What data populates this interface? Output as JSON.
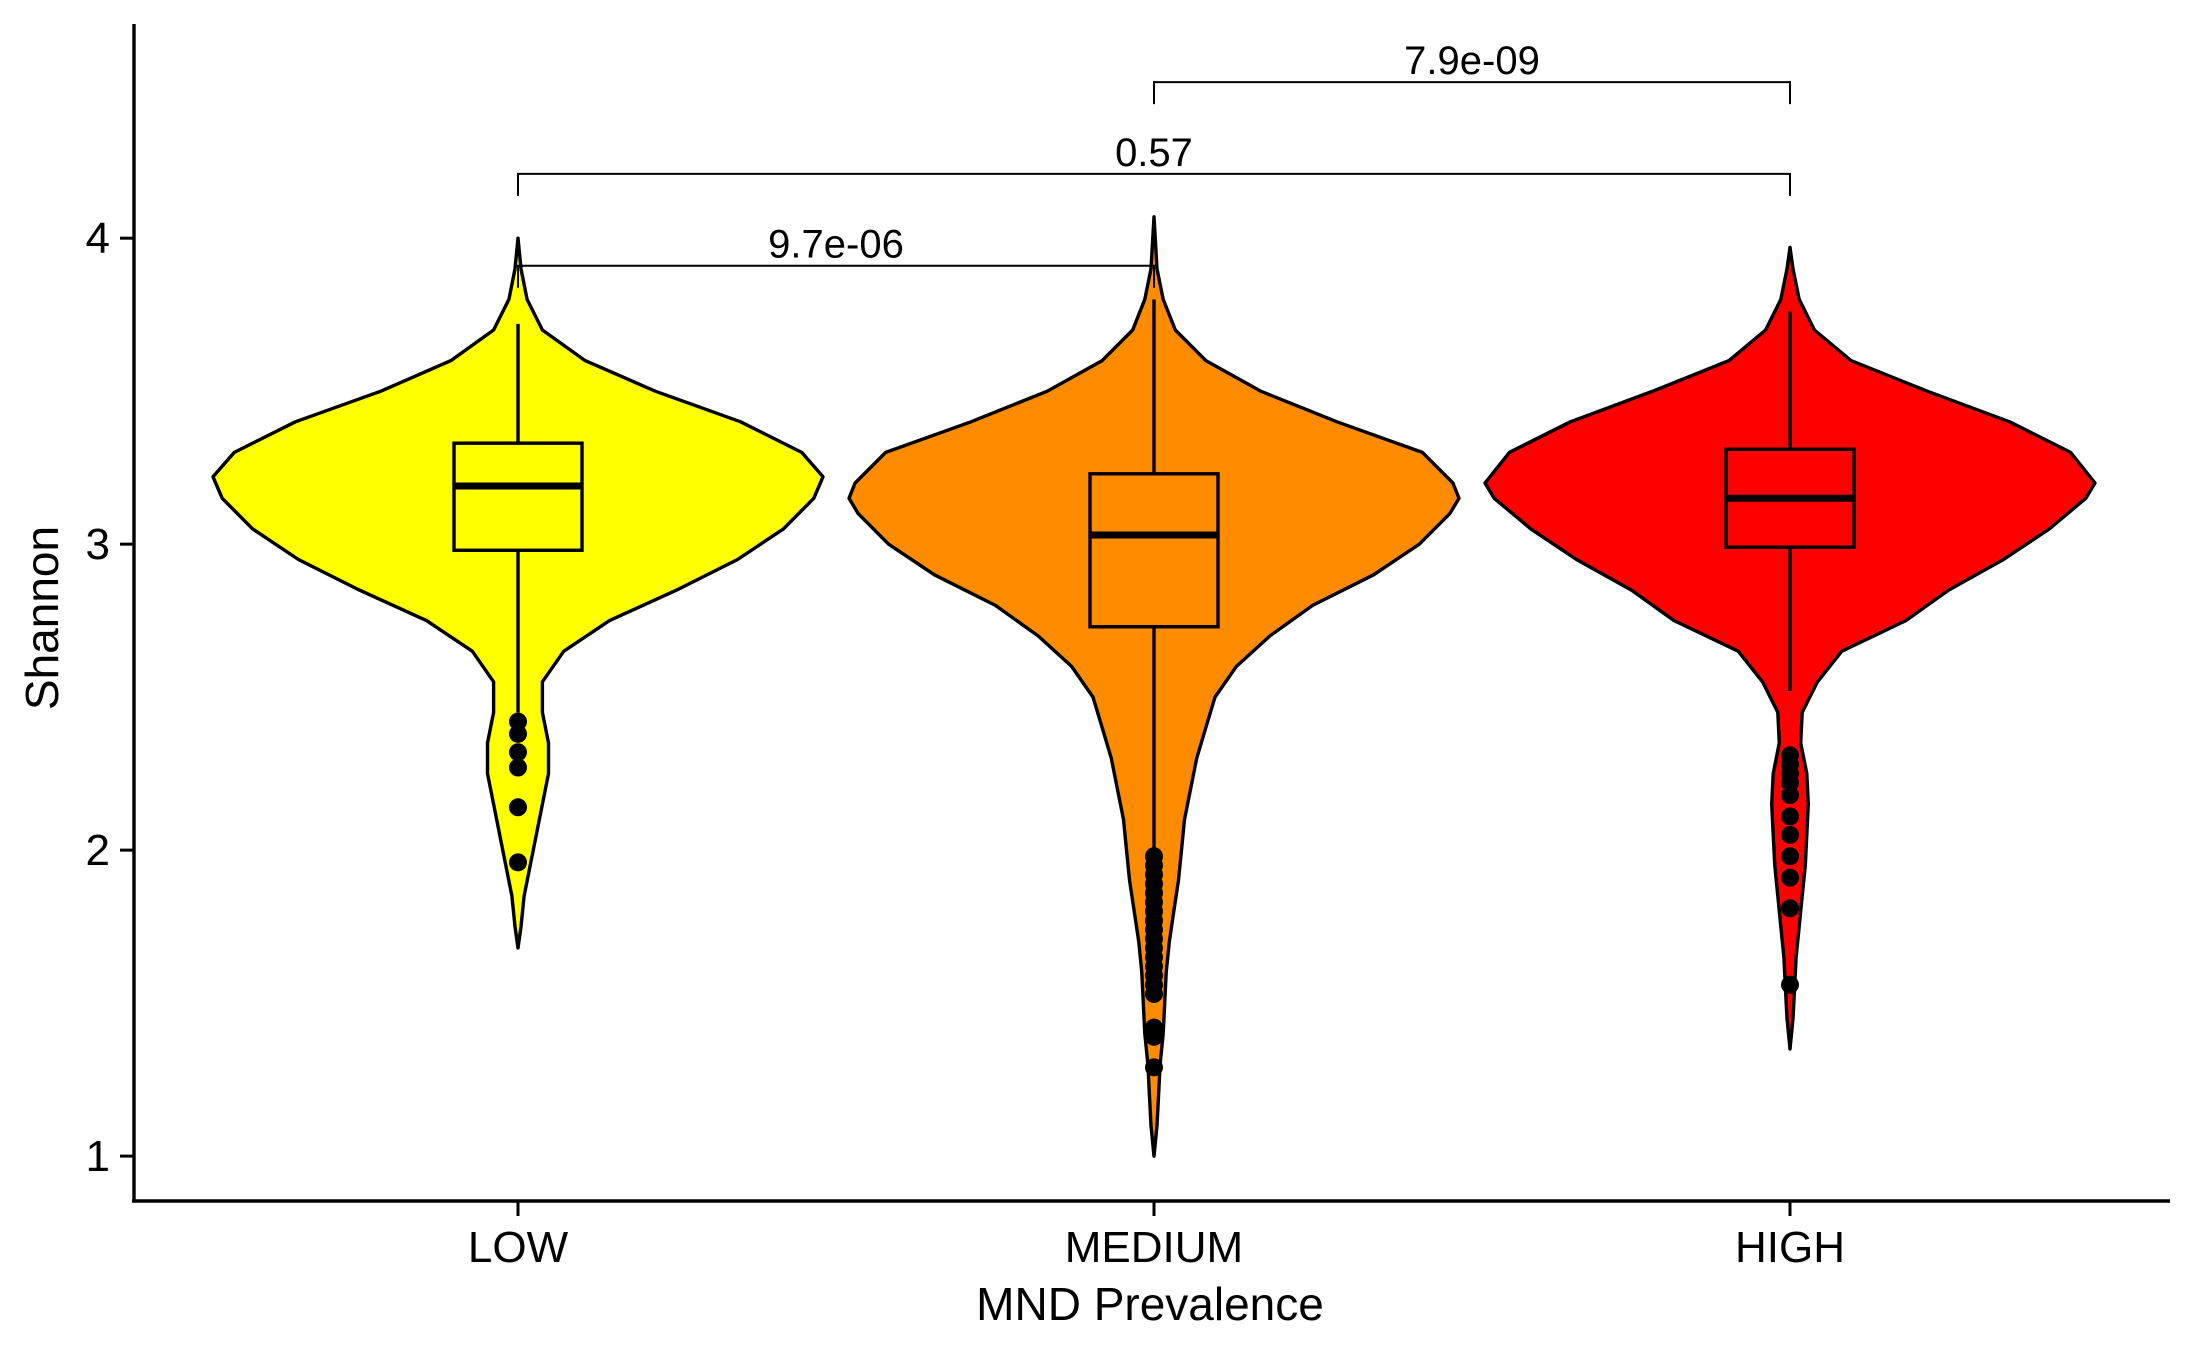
{
  "chart_data": {
    "type": "violin",
    "xlabel": "MND Prevalence",
    "ylabel": "Shannon",
    "ylim": [
      0.85,
      4.7
    ],
    "yticks": [
      1,
      2,
      3,
      4
    ],
    "grid": false,
    "legend": "none",
    "categories": [
      "LOW",
      "MEDIUM",
      "HIGH"
    ],
    "colors": [
      "#FFFF00",
      "#FF8C00",
      "#FF0000"
    ],
    "violins": [
      {
        "name": "LOW",
        "min": 1.68,
        "max": 4.0,
        "density": [
          [
            1.68,
            0.0
          ],
          [
            1.75,
            0.01
          ],
          [
            1.85,
            0.02
          ],
          [
            1.95,
            0.04
          ],
          [
            2.05,
            0.06
          ],
          [
            2.15,
            0.08
          ],
          [
            2.25,
            0.1
          ],
          [
            2.35,
            0.1
          ],
          [
            2.45,
            0.08
          ],
          [
            2.55,
            0.08
          ],
          [
            2.65,
            0.15
          ],
          [
            2.75,
            0.3
          ],
          [
            2.85,
            0.52
          ],
          [
            2.95,
            0.72
          ],
          [
            3.05,
            0.87
          ],
          [
            3.15,
            0.97
          ],
          [
            3.22,
            1.0
          ],
          [
            3.3,
            0.93
          ],
          [
            3.4,
            0.73
          ],
          [
            3.5,
            0.45
          ],
          [
            3.6,
            0.22
          ],
          [
            3.7,
            0.08
          ],
          [
            3.8,
            0.03
          ],
          [
            3.9,
            0.01
          ],
          [
            4.0,
            0.0
          ]
        ],
        "q1": 2.98,
        "median": 3.19,
        "q3": 3.33,
        "whisker_low": 2.45,
        "whisker_high": 3.72,
        "outliers": [
          2.42,
          2.38,
          2.32,
          2.27,
          2.14,
          1.96
        ]
      },
      {
        "name": "MEDIUM",
        "min": 1.0,
        "max": 4.07,
        "density": [
          [
            1.0,
            0.0
          ],
          [
            1.1,
            0.01
          ],
          [
            1.2,
            0.015
          ],
          [
            1.3,
            0.02
          ],
          [
            1.4,
            0.03
          ],
          [
            1.5,
            0.035
          ],
          [
            1.6,
            0.04
          ],
          [
            1.7,
            0.05
          ],
          [
            1.8,
            0.065
          ],
          [
            1.9,
            0.08
          ],
          [
            2.0,
            0.09
          ],
          [
            2.1,
            0.1
          ],
          [
            2.2,
            0.12
          ],
          [
            2.3,
            0.14
          ],
          [
            2.4,
            0.17
          ],
          [
            2.5,
            0.2
          ],
          [
            2.6,
            0.27
          ],
          [
            2.7,
            0.38
          ],
          [
            2.8,
            0.52
          ],
          [
            2.9,
            0.72
          ],
          [
            3.0,
            0.87
          ],
          [
            3.1,
            0.97
          ],
          [
            3.15,
            1.0
          ],
          [
            3.2,
            0.98
          ],
          [
            3.3,
            0.88
          ],
          [
            3.4,
            0.6
          ],
          [
            3.5,
            0.35
          ],
          [
            3.6,
            0.17
          ],
          [
            3.7,
            0.07
          ],
          [
            3.8,
            0.03
          ],
          [
            3.9,
            0.01
          ],
          [
            4.07,
            0.0
          ]
        ],
        "q1": 2.73,
        "median": 3.03,
        "q3": 3.23,
        "whisker_low": 1.98,
        "whisker_high": 3.8,
        "outliers": [
          1.98,
          1.95,
          1.92,
          1.89,
          1.86,
          1.83,
          1.8,
          1.77,
          1.74,
          1.71,
          1.68,
          1.65,
          1.62,
          1.59,
          1.56,
          1.53,
          1.42,
          1.39,
          1.29
        ]
      },
      {
        "name": "HIGH",
        "min": 1.35,
        "max": 3.97,
        "density": [
          [
            1.35,
            0.0
          ],
          [
            1.45,
            0.01
          ],
          [
            1.55,
            0.015
          ],
          [
            1.65,
            0.02
          ],
          [
            1.75,
            0.03
          ],
          [
            1.85,
            0.04
          ],
          [
            1.95,
            0.05
          ],
          [
            2.05,
            0.055
          ],
          [
            2.15,
            0.06
          ],
          [
            2.25,
            0.055
          ],
          [
            2.35,
            0.035
          ],
          [
            2.45,
            0.04
          ],
          [
            2.55,
            0.09
          ],
          [
            2.65,
            0.17
          ],
          [
            2.75,
            0.38
          ],
          [
            2.85,
            0.52
          ],
          [
            2.95,
            0.7
          ],
          [
            3.05,
            0.85
          ],
          [
            3.15,
            0.97
          ],
          [
            3.2,
            1.0
          ],
          [
            3.3,
            0.92
          ],
          [
            3.4,
            0.72
          ],
          [
            3.5,
            0.45
          ],
          [
            3.6,
            0.2
          ],
          [
            3.7,
            0.08
          ],
          [
            3.8,
            0.03
          ],
          [
            3.9,
            0.01
          ],
          [
            3.97,
            0.0
          ]
        ],
        "q1": 2.99,
        "median": 3.15,
        "q3": 3.31,
        "whisker_low": 2.52,
        "whisker_high": 3.76,
        "outliers": [
          2.31,
          2.28,
          2.25,
          2.22,
          2.18,
          2.11,
          2.05,
          1.98,
          1.91,
          1.81,
          1.56
        ]
      }
    ],
    "comparisons": [
      {
        "from": "LOW",
        "to": "MEDIUM",
        "y": 3.91,
        "label": "9.7e-06"
      },
      {
        "from": "LOW",
        "to": "HIGH",
        "y": 4.21,
        "label": "0.57"
      },
      {
        "from": "MEDIUM",
        "to": "HIGH",
        "y": 4.51,
        "label": "7.9e-09"
      }
    ]
  }
}
